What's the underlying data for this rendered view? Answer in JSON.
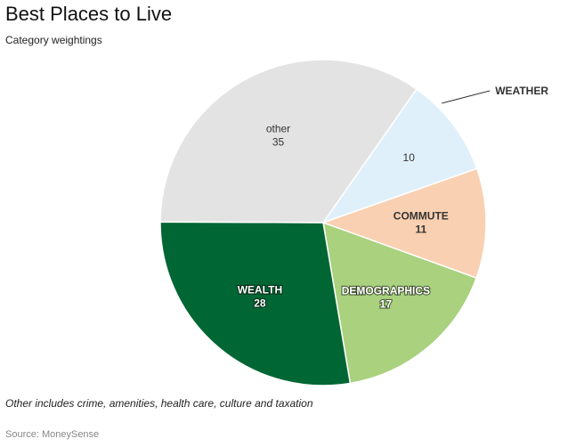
{
  "title": "Best Places to Live",
  "subtitle": "Category weightings",
  "footnote": "Other includes crime, amenities, health care, culture and taxation",
  "source": "Source: MoneySense",
  "chart_data": {
    "type": "pie",
    "title": "Best Places to Live",
    "subtitle": "Category weightings",
    "slices": [
      {
        "label": "WEATHER",
        "value": 10,
        "color": "#dff0fb",
        "text_color": "#333333",
        "label_style": "callout"
      },
      {
        "label": "COMMUTE",
        "value": 11,
        "color": "#f9d0b1",
        "text_color": "#333333",
        "label_style": "inside"
      },
      {
        "label": "DEMOGRAPHICS",
        "value": 17,
        "color": "#a9d17e",
        "text_color": "#ffffff",
        "label_style": "inside"
      },
      {
        "label": "WEALTH",
        "value": 28,
        "color": "#006633",
        "text_color": "#ffffff",
        "label_style": "inside"
      },
      {
        "label": "other",
        "value": 35,
        "color": "#e3e3e3",
        "text_color": "#333333",
        "label_style": "inside"
      }
    ],
    "start_angle_deg": 35,
    "legend": "none"
  }
}
